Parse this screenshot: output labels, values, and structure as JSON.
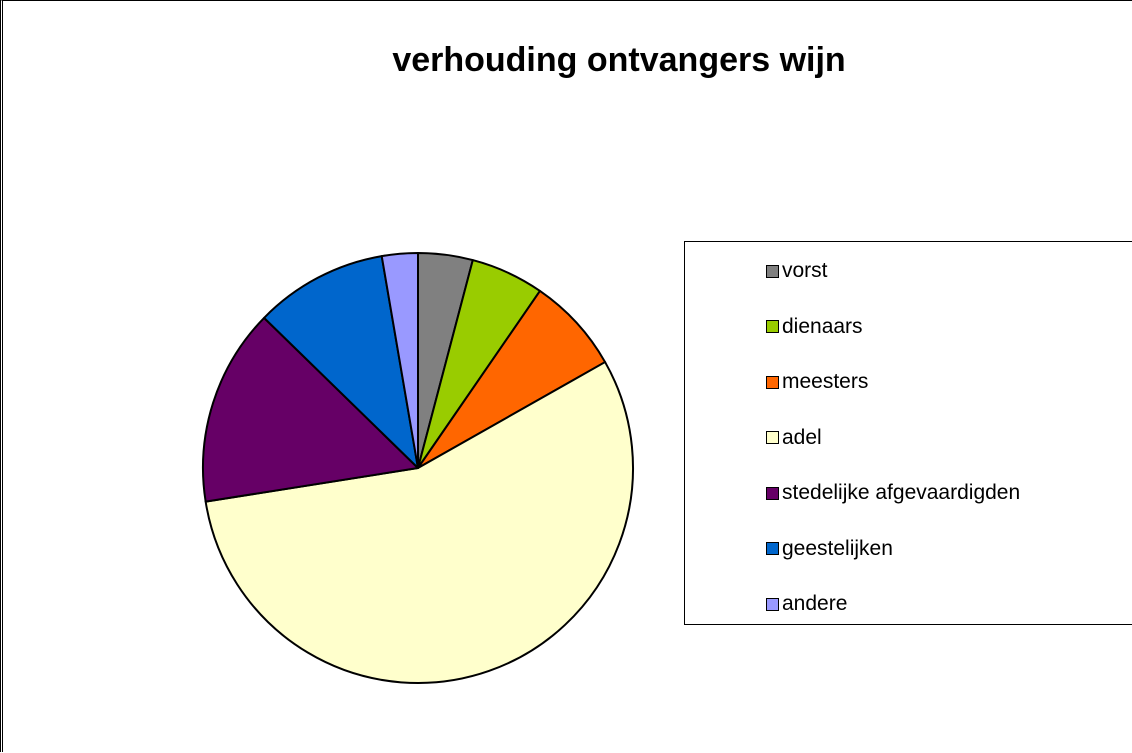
{
  "chart_data": {
    "type": "pie",
    "title": "verhouding ontvangers wijn",
    "legend_position": "right",
    "start_angle": "top",
    "direction": "clockwise",
    "slices": [
      {
        "label": "vorst",
        "value": 4.1,
        "color": "#808080"
      },
      {
        "label": "dienaars",
        "value": 5.5,
        "color": "#99cc00"
      },
      {
        "label": "meesters",
        "value": 7.2,
        "color": "#ff6600"
      },
      {
        "label": "adel",
        "value": 55.7,
        "color": "#ffffcc"
      },
      {
        "label": "stedelijke afgevaardigden",
        "value": 14.8,
        "color": "#660066"
      },
      {
        "label": "geestelijken",
        "value": 10.0,
        "color": "#0066cc"
      },
      {
        "label": "andere",
        "value": 2.7,
        "color": "#9999ff"
      }
    ]
  }
}
